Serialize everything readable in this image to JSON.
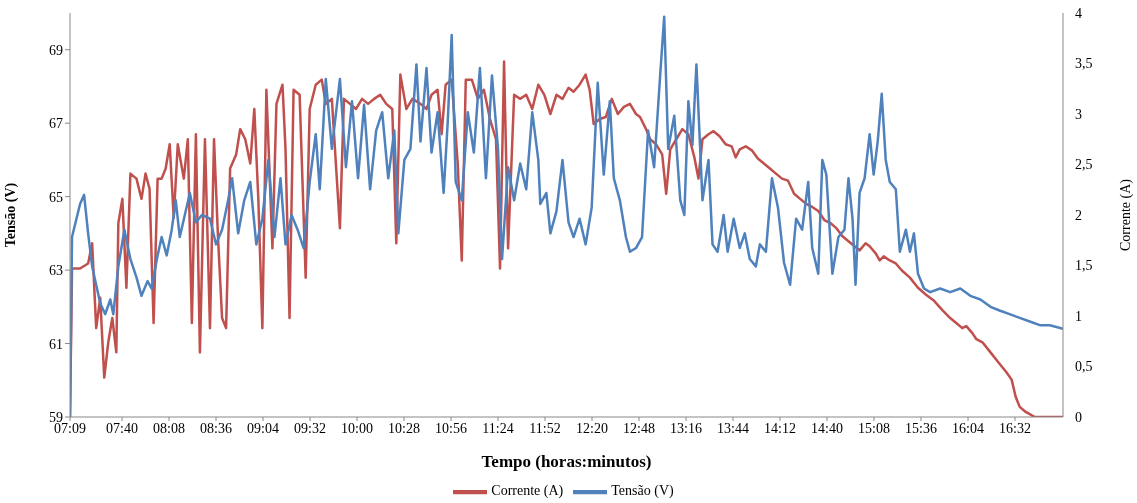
{
  "chart_data": {
    "type": "line",
    "xlabel": "Tempo  (horas:minutos)",
    "ylabel": "Tensão (V)",
    "y2label": "Corrente (A)",
    "xlim": [
      7.15,
      17.01
    ],
    "xticks": [
      {
        "value": 7.15,
        "label": "07:09"
      },
      {
        "value": 7.6667,
        "label": "07:40"
      },
      {
        "value": 8.1333,
        "label": "08:08"
      },
      {
        "value": 8.6,
        "label": "08:36"
      },
      {
        "value": 9.0667,
        "label": "09:04"
      },
      {
        "value": 9.5333,
        "label": "09:32"
      },
      {
        "value": 10,
        "label": "10:00"
      },
      {
        "value": 10.4667,
        "label": "10:28"
      },
      {
        "value": 10.9333,
        "label": "10:56"
      },
      {
        "value": 11.4,
        "label": "11:24"
      },
      {
        "value": 11.8667,
        "label": "11:52"
      },
      {
        "value": 12.3333,
        "label": "12:20"
      },
      {
        "value": 12.8,
        "label": "12:48"
      },
      {
        "value": 13.2667,
        "label": "13:16"
      },
      {
        "value": 13.7333,
        "label": "13:44"
      },
      {
        "value": 14.2,
        "label": "14:12"
      },
      {
        "value": 14.6667,
        "label": "14:40"
      },
      {
        "value": 15.1333,
        "label": "15:08"
      },
      {
        "value": 15.6,
        "label": "15:36"
      },
      {
        "value": 16.0667,
        "label": "16:04"
      },
      {
        "value": 16.5333,
        "label": "16:32"
      }
    ],
    "ylim": [
      59,
      70
    ],
    "yticks": [
      59,
      61,
      63,
      65,
      67,
      69
    ],
    "y2lim": [
      0,
      4
    ],
    "y2ticks": [
      0,
      {
        "value": 0.5,
        "label": "0,5"
      },
      1,
      {
        "value": 1.5,
        "label": "1,5"
      },
      2,
      {
        "value": 2.5,
        "label": "2,5"
      },
      3,
      {
        "value": 3.5,
        "label": "3,5"
      },
      4
    ],
    "legend": "bottom",
    "series": [
      {
        "name": "Corrente (A)",
        "color": "#c0504d",
        "axis": "y2",
        "x": [
          7.15,
          7.17,
          7.25,
          7.33,
          7.37,
          7.41,
          7.45,
          7.49,
          7.53,
          7.57,
          7.61,
          7.63,
          7.67,
          7.71,
          7.75,
          7.81,
          7.86,
          7.9,
          7.94,
          7.98,
          8.02,
          8.06,
          8.1,
          8.14,
          8.18,
          8.22,
          8.28,
          8.32,
          8.36,
          8.4,
          8.44,
          8.49,
          8.54,
          8.58,
          8.62,
          8.66,
          8.7,
          8.74,
          8.8,
          8.84,
          8.89,
          8.94,
          8.98,
          9.02,
          9.06,
          9.1,
          9.16,
          9.2,
          9.26,
          9.29,
          9.33,
          9.37,
          9.43,
          9.49,
          9.53,
          9.59,
          9.65,
          9.69,
          9.75,
          9.83,
          9.87,
          9.93,
          9.99,
          10.05,
          10.11,
          10.17,
          10.23,
          10.29,
          10.35,
          10.39,
          10.43,
          10.49,
          10.55,
          10.63,
          10.69,
          10.74,
          10.8,
          10.84,
          10.88,
          10.94,
          11.0,
          11.04,
          11.08,
          11.14,
          11.2,
          11.26,
          11.32,
          11.38,
          11.42,
          11.46,
          11.5,
          11.56,
          11.62,
          11.68,
          11.74,
          11.8,
          11.86,
          11.92,
          11.98,
          12.04,
          12.1,
          12.15,
          12.21,
          12.27,
          12.31,
          12.35,
          12.41,
          12.47,
          12.53,
          12.59,
          12.65,
          12.71,
          12.77,
          12.81,
          12.87,
          12.91,
          12.97,
          13.03,
          13.07,
          13.11,
          13.17,
          13.23,
          13.29,
          13.35,
          13.39,
          13.43,
          13.49,
          13.54,
          13.6,
          13.66,
          13.72,
          13.76,
          13.8,
          13.86,
          13.92,
          13.98,
          14.04,
          14.1,
          14.16,
          14.22,
          14.28,
          14.34,
          14.4,
          14.46,
          14.52,
          14.58,
          14.64,
          14.7,
          14.76,
          14.82,
          14.88,
          14.94,
          14.99,
          15.05,
          15.09,
          15.15,
          15.19,
          15.23,
          15.29,
          15.35,
          15.41,
          15.49,
          15.57,
          15.65,
          15.73,
          15.81,
          15.89,
          15.95,
          16.01,
          16.05,
          16.11,
          16.15,
          16.21,
          16.29,
          16.37,
          16.45,
          16.5,
          16.54,
          16.58,
          16.64,
          16.73,
          17.01
        ],
        "values": [
          0,
          1.47,
          1.47,
          1.52,
          1.72,
          0.88,
          1.18,
          0.39,
          0.74,
          0.98,
          0.64,
          1.92,
          2.16,
          1.28,
          2.41,
          2.36,
          2.16,
          2.41,
          2.26,
          0.93,
          2.36,
          2.36,
          2.46,
          2.7,
          1.97,
          2.7,
          2.36,
          2.75,
          0.93,
          2.8,
          0.64,
          2.75,
          0.88,
          2.75,
          1.77,
          0.98,
          0.88,
          2.46,
          2.6,
          2.85,
          2.75,
          2.51,
          3.05,
          2.16,
          0.88,
          3.24,
          1.67,
          3.1,
          3.29,
          2.65,
          0.98,
          3.24,
          3.19,
          1.38,
          3.05,
          3.29,
          3.34,
          3.1,
          3.15,
          1.87,
          3.15,
          3.1,
          3.05,
          3.15,
          3.1,
          3.15,
          3.19,
          3.1,
          3.05,
          1.72,
          3.39,
          3.05,
          3.15,
          3.1,
          3.05,
          3.19,
          3.24,
          2.8,
          3.29,
          3.34,
          2.51,
          1.55,
          3.34,
          3.34,
          3.15,
          3.24,
          2.95,
          2.75,
          1.47,
          3.52,
          1.67,
          3.19,
          3.15,
          3.19,
          3.05,
          3.29,
          3.19,
          3.0,
          3.19,
          3.15,
          3.26,
          3.22,
          3.29,
          3.39,
          3.24,
          2.9,
          2.95,
          2.97,
          3.15,
          3.0,
          3.07,
          3.1,
          3.0,
          2.97,
          2.85,
          2.75,
          2.7,
          2.6,
          2.21,
          2.65,
          2.75,
          2.85,
          2.8,
          2.57,
          2.36,
          2.75,
          2.8,
          2.83,
          2.78,
          2.7,
          2.68,
          2.57,
          2.65,
          2.68,
          2.64,
          2.56,
          2.51,
          2.46,
          2.41,
          2.36,
          2.34,
          2.21,
          2.16,
          2.11,
          2.08,
          2.04,
          1.95,
          1.92,
          1.87,
          1.79,
          1.74,
          1.69,
          1.65,
          1.72,
          1.69,
          1.62,
          1.55,
          1.59,
          1.55,
          1.52,
          1.45,
          1.38,
          1.28,
          1.21,
          1.15,
          1.06,
          0.98,
          0.93,
          0.88,
          0.9,
          0.83,
          0.77,
          0.74,
          0.64,
          0.54,
          0.44,
          0.37,
          0.2,
          0.1,
          0.05,
          0,
          0
        ]
      },
      {
        "name": "Tensão (V)",
        "color": "#4f81bd",
        "x": [
          7.15,
          7.17,
          7.25,
          7.29,
          7.33,
          7.37,
          7.45,
          7.5,
          7.55,
          7.58,
          7.63,
          7.69,
          7.75,
          7.81,
          7.86,
          7.92,
          7.96,
          8.02,
          8.06,
          8.11,
          8.16,
          8.2,
          8.24,
          8.29,
          8.34,
          8.4,
          8.46,
          8.54,
          8.6,
          8.66,
          8.72,
          8.76,
          8.82,
          8.88,
          8.94,
          9.0,
          9.06,
          9.12,
          9.18,
          9.24,
          9.29,
          9.35,
          9.41,
          9.47,
          9.53,
          9.59,
          9.63,
          9.69,
          9.75,
          9.83,
          9.89,
          9.95,
          10.01,
          10.07,
          10.13,
          10.19,
          10.25,
          10.31,
          10.37,
          10.41,
          10.47,
          10.53,
          10.59,
          10.63,
          10.69,
          10.74,
          10.8,
          10.86,
          10.9,
          10.94,
          10.98,
          11.04,
          11.1,
          11.16,
          11.22,
          11.28,
          11.34,
          11.4,
          11.44,
          11.5,
          11.56,
          11.62,
          11.68,
          11.74,
          11.8,
          11.82,
          11.88,
          11.92,
          11.98,
          12.04,
          12.1,
          12.15,
          12.21,
          12.27,
          12.33,
          12.39,
          12.45,
          12.51,
          12.55,
          12.61,
          12.67,
          12.71,
          12.77,
          12.83,
          12.89,
          12.95,
          13.01,
          13.05,
          13.09,
          13.15,
          13.21,
          13.25,
          13.29,
          13.33,
          13.37,
          13.43,
          13.49,
          13.53,
          13.58,
          13.64,
          13.68,
          13.74,
          13.8,
          13.85,
          13.9,
          13.96,
          14.0,
          14.06,
          14.12,
          14.18,
          14.24,
          14.3,
          14.36,
          14.42,
          14.48,
          14.52,
          14.58,
          14.62,
          14.66,
          14.72,
          14.78,
          14.84,
          14.88,
          14.92,
          14.95,
          14.99,
          15.04,
          15.09,
          15.13,
          15.17,
          15.21,
          15.25,
          15.29,
          15.35,
          15.39,
          15.45,
          15.49,
          15.53,
          15.57,
          15.63,
          15.69,
          15.79,
          15.89,
          15.99,
          16.09,
          16.19,
          16.29,
          16.38,
          16.48,
          16.58,
          16.68,
          16.78,
          16.88,
          17.01
        ],
        "values": [
          59,
          63.9,
          64.8,
          65.05,
          64.0,
          63.1,
          62.1,
          61.8,
          62.2,
          61.8,
          63.1,
          64.1,
          63.3,
          62.8,
          62.3,
          62.7,
          62.5,
          63.4,
          63.9,
          63.4,
          64.1,
          64.9,
          63.9,
          64.5,
          65.1,
          64.3,
          64.5,
          64.4,
          63.7,
          64.1,
          64.9,
          65.5,
          64.0,
          64.9,
          65.4,
          63.7,
          64.4,
          66.0,
          63.9,
          65.5,
          63.7,
          64.5,
          64.1,
          63.6,
          65.4,
          66.7,
          65.2,
          68.2,
          66.3,
          68.2,
          65.8,
          67.6,
          65.5,
          67.5,
          65.2,
          66.8,
          67.3,
          65.5,
          66.8,
          64.0,
          66.0,
          66.3,
          68.6,
          66.5,
          68.5,
          66.2,
          67.3,
          65.1,
          67.0,
          69.4,
          65.4,
          64.9,
          67.3,
          66.2,
          68.5,
          65.5,
          68.3,
          66.3,
          63.3,
          65.8,
          64.9,
          65.9,
          65.2,
          67.3,
          66.0,
          64.8,
          65.1,
          64.0,
          64.6,
          66.0,
          64.3,
          63.9,
          64.4,
          63.7,
          64.7,
          68.1,
          65.6,
          67.6,
          65.5,
          64.9,
          63.9,
          63.5,
          63.6,
          63.9,
          66.8,
          65.8,
          68.3,
          69.9,
          66.3,
          67.2,
          64.9,
          64.5,
          67.6,
          66.4,
          68.6,
          64.9,
          66.0,
          63.7,
          63.5,
          64.5,
          63.5,
          64.4,
          63.6,
          64.0,
          63.3,
          63.1,
          63.7,
          63.5,
          65.5,
          64.7,
          63.2,
          62.6,
          64.4,
          64.1,
          65.4,
          63.6,
          62.9,
          66.0,
          65.6,
          62.9,
          63.9,
          64.1,
          65.5,
          64.4,
          62.6,
          65.1,
          65.5,
          66.7,
          65.6,
          66.5,
          67.8,
          66.0,
          65.4,
          65.2,
          63.5,
          64.1,
          63.5,
          64.0,
          62.9,
          62.5,
          62.4,
          62.5,
          62.4,
          62.5,
          62.3,
          62.2,
          62.0,
          61.9,
          61.8,
          61.7,
          61.6,
          61.5,
          61.5,
          61.4
        ]
      }
    ]
  }
}
